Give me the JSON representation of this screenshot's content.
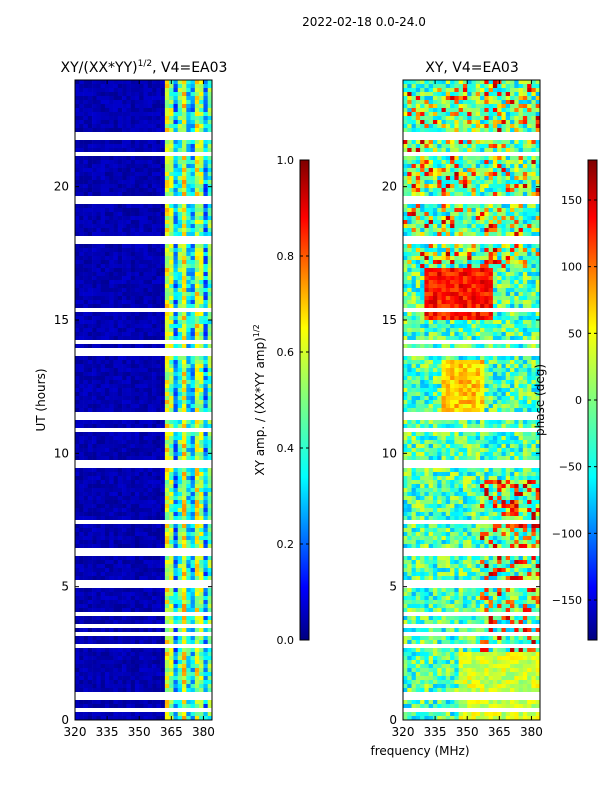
{
  "suptitle": "2022-02-18 0.0-24.0",
  "chart_data": [
    {
      "type": "heatmap",
      "title_main": "XY/(XX*YY)",
      "title_sup": "1/2",
      "title_rest": ", V4=EA03",
      "xlabel": "",
      "ylabel": "UT (hours)",
      "xlim": [
        320,
        384
      ],
      "ylim": [
        0,
        24
      ],
      "xticks": [
        "320",
        "335",
        "350",
        "365",
        "380"
      ],
      "yticks": [
        "0",
        "5",
        "10",
        "15",
        "20"
      ],
      "colorbar": {
        "label_main": "XY amp. / (XX*YY amp)",
        "label_sup": "1/2",
        "range": [
          0.0,
          1.0
        ],
        "ticks": [
          "0.0",
          "0.2",
          "0.4",
          "0.6",
          "0.8",
          "1.0"
        ]
      }
    },
    {
      "type": "heatmap",
      "title": "XY, V4=EA03",
      "xlabel": "frequency (MHz)",
      "ylabel": "",
      "xlim": [
        320,
        384
      ],
      "ylim": [
        0,
        24
      ],
      "xticks": [
        "320",
        "335",
        "350",
        "365",
        "380"
      ],
      "yticks": [
        "0",
        "5",
        "10",
        "15",
        "20"
      ],
      "colorbar": {
        "label": "phase (deg)",
        "range": [
          -180,
          180
        ],
        "ticks": [
          "-150",
          "-100",
          "-50",
          "0",
          "50",
          "100",
          "150"
        ]
      }
    }
  ],
  "colors": {
    "jet": [
      "#00007f",
      "#0000ff",
      "#007fff",
      "#00ffff",
      "#7fff7f",
      "#ffff00",
      "#ff7f00",
      "#ff0000",
      "#7f0000"
    ]
  }
}
